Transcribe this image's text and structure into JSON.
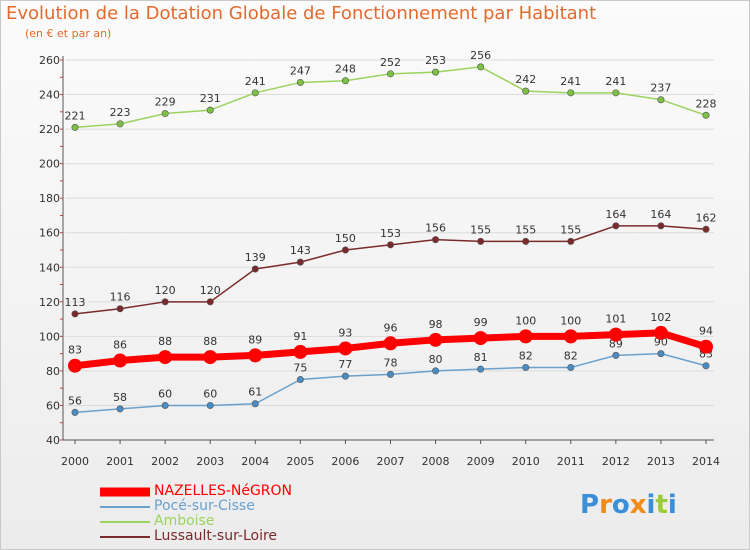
{
  "title": "Evolution de la Dotation Globale de Fonctionnement par Habitant",
  "subtitle": "(en € et par an)",
  "logo": {
    "letters": [
      "P",
      "r",
      "o",
      "x",
      "i",
      "t",
      "i"
    ],
    "colors": [
      "#3a8fd6",
      "#f08a1a",
      "#3a8fd6",
      "#f08a1a",
      "#3a8fd6",
      "#9ccc3c",
      "#3a8fd6"
    ]
  },
  "chart_data": {
    "type": "line",
    "title": "Evolution de la Dotation Globale de Fonctionnement par Habitant",
    "ylabel": "(en € et par an)",
    "xlabel": "",
    "ylim": [
      40,
      260
    ],
    "yticks": [
      "40",
      "60",
      "80",
      "100",
      "120",
      "140",
      "160",
      "180",
      "200",
      "220",
      "240",
      "260"
    ],
    "categories": [
      "2000",
      "2001",
      "2002",
      "2003",
      "2004",
      "2005",
      "2006",
      "2007",
      "2008",
      "2009",
      "2010",
      "2011",
      "2012",
      "2013",
      "2014"
    ],
    "series": [
      {
        "name": "Amboise",
        "color": "#9ad35e",
        "marker": "#7cc143",
        "thick": false,
        "values": [
          221,
          223,
          229,
          231,
          241,
          247,
          248,
          252,
          253,
          256,
          242,
          241,
          241,
          237,
          228
        ],
        "labels": [
          "221",
          "223",
          "229",
          "231",
          "241",
          "247",
          "248",
          "252",
          "253",
          "256",
          "242",
          "241",
          "241",
          "237",
          "228"
        ]
      },
      {
        "name": "Lussault-sur-Loire",
        "color": "#7a2a2a",
        "marker": "#7a2a2a",
        "thick": false,
        "values": [
          113,
          116,
          120,
          120,
          139,
          143,
          150,
          153,
          156,
          155,
          155,
          155,
          164,
          164,
          162
        ],
        "labels": [
          "113",
          "116",
          "120",
          "120",
          "139",
          "143",
          "150",
          "153",
          "156",
          "155",
          "155",
          "155",
          "164",
          "164",
          "162"
        ]
      },
      {
        "name": "Pocé-sur-Cisse",
        "color": "#6aa0cc",
        "marker": "#4a8cc4",
        "thick": false,
        "values": [
          56,
          58,
          60,
          60,
          61,
          75,
          77,
          78,
          80,
          81,
          82,
          82,
          89,
          90,
          83
        ],
        "labels": [
          "56",
          "58",
          "60",
          "60",
          "61",
          "75",
          "77",
          "78",
          "80",
          "81",
          "82",
          "82",
          "89",
          "90",
          "83"
        ]
      },
      {
        "name": "NAZELLES-NéGRON",
        "color": "#ff0000",
        "marker": "#ff0000",
        "thick": true,
        "values": [
          83,
          86,
          88,
          88,
          89,
          91,
          93,
          96,
          98,
          99,
          100,
          100,
          101,
          102,
          94
        ],
        "labels": [
          "83",
          "86",
          "88",
          "88",
          "89",
          "91",
          "93",
          "96",
          "98",
          "99",
          "100",
          "100",
          "101",
          "102",
          "94"
        ]
      }
    ],
    "legend": [
      {
        "name": "NAZELLES-NéGRON",
        "color": "#ff0000",
        "thick": true
      },
      {
        "name": "Pocé-sur-Cisse",
        "color": "#6aa0cc",
        "thick": false
      },
      {
        "name": "Amboise",
        "color": "#9ad35e",
        "thick": false
      },
      {
        "name": "Lussault-sur-Loire",
        "color": "#7a2a2a",
        "thick": false
      }
    ]
  }
}
